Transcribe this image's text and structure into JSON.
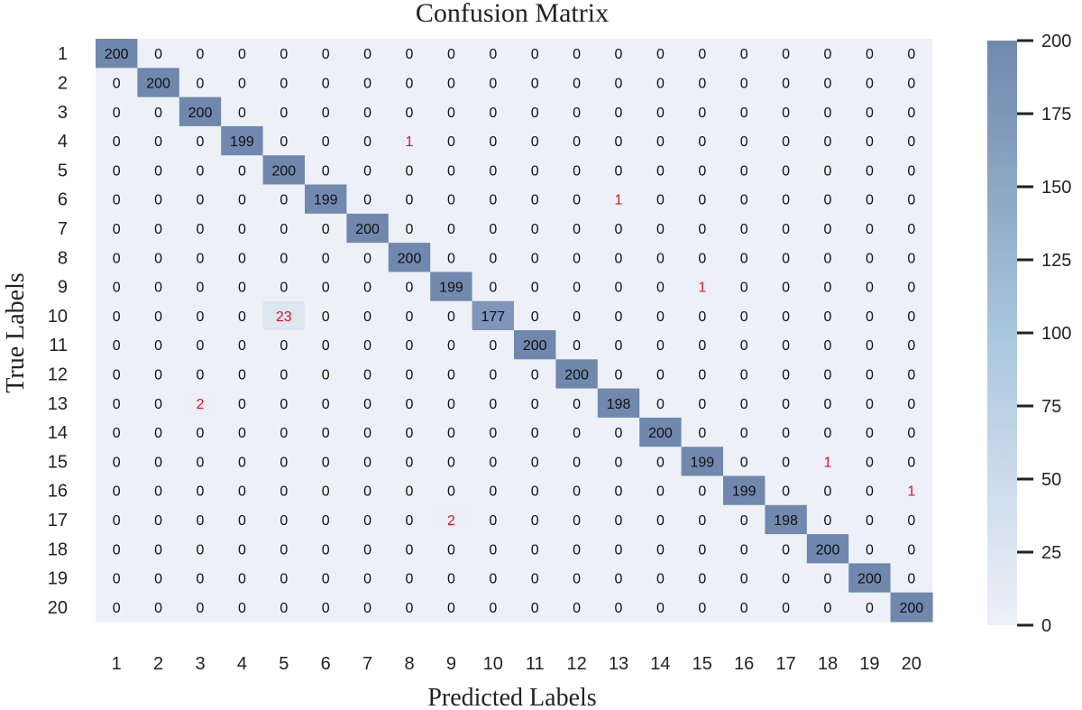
{
  "chart_data": {
    "type": "heatmap",
    "title": "Confusion Matrix",
    "xlabel": "Predicted Labels",
    "ylabel": "True Labels",
    "x_categories": [
      "1",
      "2",
      "3",
      "4",
      "5",
      "6",
      "7",
      "8",
      "9",
      "10",
      "11",
      "12",
      "13",
      "14",
      "15",
      "16",
      "17",
      "18",
      "19",
      "20"
    ],
    "y_categories": [
      "1",
      "2",
      "3",
      "4",
      "5",
      "6",
      "7",
      "8",
      "9",
      "10",
      "11",
      "12",
      "13",
      "14",
      "15",
      "16",
      "17",
      "18",
      "19",
      "20"
    ],
    "values": [
      [
        200,
        0,
        0,
        0,
        0,
        0,
        0,
        0,
        0,
        0,
        0,
        0,
        0,
        0,
        0,
        0,
        0,
        0,
        0,
        0
      ],
      [
        0,
        200,
        0,
        0,
        0,
        0,
        0,
        0,
        0,
        0,
        0,
        0,
        0,
        0,
        0,
        0,
        0,
        0,
        0,
        0
      ],
      [
        0,
        0,
        200,
        0,
        0,
        0,
        0,
        0,
        0,
        0,
        0,
        0,
        0,
        0,
        0,
        0,
        0,
        0,
        0,
        0
      ],
      [
        0,
        0,
        0,
        199,
        0,
        0,
        0,
        1,
        0,
        0,
        0,
        0,
        0,
        0,
        0,
        0,
        0,
        0,
        0,
        0
      ],
      [
        0,
        0,
        0,
        0,
        200,
        0,
        0,
        0,
        0,
        0,
        0,
        0,
        0,
        0,
        0,
        0,
        0,
        0,
        0,
        0
      ],
      [
        0,
        0,
        0,
        0,
        0,
        199,
        0,
        0,
        0,
        0,
        0,
        0,
        1,
        0,
        0,
        0,
        0,
        0,
        0,
        0
      ],
      [
        0,
        0,
        0,
        0,
        0,
        0,
        200,
        0,
        0,
        0,
        0,
        0,
        0,
        0,
        0,
        0,
        0,
        0,
        0,
        0
      ],
      [
        0,
        0,
        0,
        0,
        0,
        0,
        0,
        200,
        0,
        0,
        0,
        0,
        0,
        0,
        0,
        0,
        0,
        0,
        0,
        0
      ],
      [
        0,
        0,
        0,
        0,
        0,
        0,
        0,
        0,
        199,
        0,
        0,
        0,
        0,
        0,
        1,
        0,
        0,
        0,
        0,
        0
      ],
      [
        0,
        0,
        0,
        0,
        23,
        0,
        0,
        0,
        0,
        177,
        0,
        0,
        0,
        0,
        0,
        0,
        0,
        0,
        0,
        0
      ],
      [
        0,
        0,
        0,
        0,
        0,
        0,
        0,
        0,
        0,
        0,
        200,
        0,
        0,
        0,
        0,
        0,
        0,
        0,
        0,
        0
      ],
      [
        0,
        0,
        0,
        0,
        0,
        0,
        0,
        0,
        0,
        0,
        0,
        200,
        0,
        0,
        0,
        0,
        0,
        0,
        0,
        0
      ],
      [
        0,
        0,
        2,
        0,
        0,
        0,
        0,
        0,
        0,
        0,
        0,
        0,
        198,
        0,
        0,
        0,
        0,
        0,
        0,
        0
      ],
      [
        0,
        0,
        0,
        0,
        0,
        0,
        0,
        0,
        0,
        0,
        0,
        0,
        0,
        200,
        0,
        0,
        0,
        0,
        0,
        0
      ],
      [
        0,
        0,
        0,
        0,
        0,
        0,
        0,
        0,
        0,
        0,
        0,
        0,
        0,
        0,
        199,
        0,
        0,
        1,
        0,
        0
      ],
      [
        0,
        0,
        0,
        0,
        0,
        0,
        0,
        0,
        0,
        0,
        0,
        0,
        0,
        0,
        0,
        199,
        0,
        0,
        0,
        1
      ],
      [
        0,
        0,
        0,
        0,
        0,
        0,
        0,
        0,
        2,
        0,
        0,
        0,
        0,
        0,
        0,
        0,
        198,
        0,
        0,
        0
      ],
      [
        0,
        0,
        0,
        0,
        0,
        0,
        0,
        0,
        0,
        0,
        0,
        0,
        0,
        0,
        0,
        0,
        0,
        200,
        0,
        0
      ],
      [
        0,
        0,
        0,
        0,
        0,
        0,
        0,
        0,
        0,
        0,
        0,
        0,
        0,
        0,
        0,
        0,
        0,
        0,
        200,
        0
      ],
      [
        0,
        0,
        0,
        0,
        0,
        0,
        0,
        0,
        0,
        0,
        0,
        0,
        0,
        0,
        0,
        0,
        0,
        0,
        0,
        200
      ]
    ],
    "colorbar": {
      "range": [
        0,
        200
      ],
      "ticks": [
        0,
        25,
        50,
        75,
        100,
        125,
        150,
        175,
        200
      ]
    },
    "colors": {
      "low": "#eef0f8",
      "mid": "#a9c6df",
      "high": "#7088ad",
      "diagonal_text": "#111111",
      "zero_text": "#111111",
      "error_text": "#e0141e"
    },
    "grid": false,
    "legend": "right colorbar"
  }
}
